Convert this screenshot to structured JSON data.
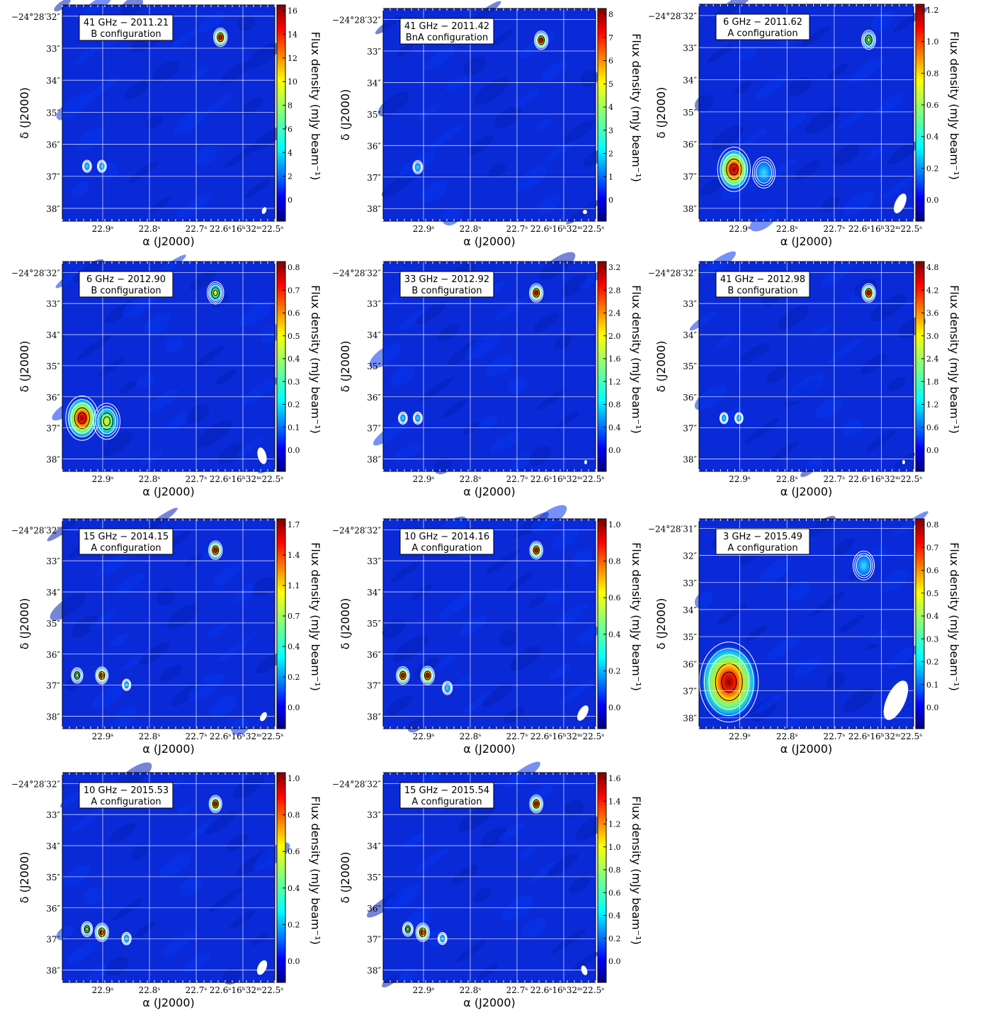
{
  "figure": {
    "xlabel": "α (J2000)",
    "ylabel": "δ (J2000)",
    "cbar_label": "Flux density (mJy beam⁻¹)"
  },
  "chart_data": [
    {
      "type": "heatmap",
      "title_line1": "41 GHz − 2011.21",
      "title_line2": "B configuration",
      "x_ticks": [
        "22.9ˢ",
        "22.8ˢ",
        "22.7ˢ",
        "22.6ˢ16ʰ32ᵐ22.5ˢ"
      ],
      "y_ticks": [
        "−24°28′32″",
        "33″",
        "34″",
        "35″",
        "36″",
        "37″",
        "38″"
      ],
      "cbar_ticks": [
        "16",
        "14",
        "12",
        "10",
        "8",
        "6",
        "4",
        "2",
        "0"
      ],
      "sources": [
        {
          "ra": "22.61",
          "dec": "32.5",
          "flux": 16
        },
        {
          "ra": "22.88",
          "dec": "36.5",
          "flux": 4
        },
        {
          "ra": "22.85",
          "dec": "36.5",
          "flux": 4
        }
      ]
    },
    {
      "type": "heatmap",
      "title_line1": "41 GHz − 2011.42",
      "title_line2": "BnA configuration",
      "x_ticks": [
        "22.9ˢ",
        "22.8ˢ",
        "22.7ˢ",
        "22.6ˢ16ʰ32ᵐ22.5ˢ"
      ],
      "y_ticks": [
        "−24°28′32″",
        "33″",
        "34″",
        "35″",
        "36″",
        "37″",
        "38″"
      ],
      "cbar_ticks": [
        "8",
        "7",
        "6",
        "5",
        "4",
        "3",
        "2",
        "1",
        "0"
      ],
      "sources": [
        {
          "ra": "22.61",
          "dec": "32.5",
          "flux": 8
        },
        {
          "ra": "22.86",
          "dec": "36.5",
          "flux": 3
        }
      ]
    },
    {
      "type": "heatmap",
      "title_line1": "6 GHz − 2011.62",
      "title_line2": "A configuration",
      "x_ticks": [
        "22.9ˢ",
        "22.8ˢ",
        "22.7ˢ",
        "22.6ˢ16ʰ32ᵐ22.5ˢ"
      ],
      "y_ticks": [
        "−24°28′32″",
        "33″",
        "34″",
        "35″",
        "36″",
        "37″",
        "38″"
      ],
      "cbar_ticks": [
        "1.2",
        "1.0",
        "0.8",
        "0.6",
        "0.4",
        "0.2",
        "0.0"
      ],
      "sources": [
        {
          "ra": "22.59",
          "dec": "32.6",
          "flux": 0.5
        },
        {
          "ra": "22.86",
          "dec": "36.6",
          "flux": 1.2
        },
        {
          "ra": "22.80",
          "dec": "36.7",
          "flux": 0.4
        }
      ]
    },
    {
      "type": "heatmap",
      "title_line1": "6 GHz − 2012.90",
      "title_line2": "B configuration",
      "x_ticks": [
        "22.9ˢ",
        "22.8ˢ",
        "22.7ˢ",
        "22.6ˢ16ʰ32ᵐ22.5ˢ"
      ],
      "y_ticks": [
        "−24°28′32″",
        "33″",
        "34″",
        "35″",
        "36″",
        "37″",
        "38″"
      ],
      "cbar_ticks": [
        "0.8",
        "0.7",
        "0.6",
        "0.5",
        "0.4",
        "0.3",
        "0.2",
        "0.1",
        "0.0"
      ],
      "sources": [
        {
          "ra": "22.62",
          "dec": "32.5",
          "flux": 0.6
        },
        {
          "ra": "22.89",
          "dec": "36.5",
          "flux": 0.85
        },
        {
          "ra": "22.84",
          "dec": "36.6",
          "flux": 0.5
        }
      ]
    },
    {
      "type": "heatmap",
      "title_line1": "33 GHz − 2012.92",
      "title_line2": "B configuration",
      "x_ticks": [
        "22.9ˢ",
        "22.8ˢ",
        "22.7ˢ",
        "22.6ˢ16ʰ32ᵐ22.5ˢ"
      ],
      "y_ticks": [
        "−24°28′32″",
        "33″",
        "34″",
        "35″",
        "36″",
        "37″",
        "38″"
      ],
      "cbar_ticks": [
        "3.2",
        "2.8",
        "2.4",
        "2.0",
        "1.6",
        "1.2",
        "0.8",
        "0.4",
        "0.0"
      ],
      "sources": [
        {
          "ra": "22.62",
          "dec": "32.5",
          "flux": 3.2
        },
        {
          "ra": "22.89",
          "dec": "36.5",
          "flux": 0.8
        },
        {
          "ra": "22.86",
          "dec": "36.5",
          "flux": 0.8
        }
      ]
    },
    {
      "type": "heatmap",
      "title_line1": "41 GHz − 2012.98",
      "title_line2": "B configuration",
      "x_ticks": [
        "22.9ˢ",
        "22.8ˢ",
        "22.7ˢ",
        "22.6ˢ16ʰ32ᵐ22.5ˢ"
      ],
      "y_ticks": [
        "−24°28′32″",
        "33″",
        "34″",
        "35″",
        "36″",
        "37″",
        "38″"
      ],
      "cbar_ticks": [
        "4.8",
        "4.2",
        "3.6",
        "3.0",
        "2.4",
        "1.8",
        "1.2",
        "0.6",
        "0.0"
      ],
      "sources": [
        {
          "ra": "22.59",
          "dec": "32.5",
          "flux": 4.8
        },
        {
          "ra": "22.88",
          "dec": "36.5",
          "flux": 0.6
        },
        {
          "ra": "22.85",
          "dec": "36.5",
          "flux": 0.6
        }
      ]
    },
    {
      "type": "heatmap",
      "title_line1": "15 GHz − 2014.15",
      "title_line2": "A configuration",
      "x_ticks": [
        "22.9ˢ",
        "22.8ˢ",
        "22.7ˢ",
        "22.6ˢ16ʰ32ᵐ22.5ˢ"
      ],
      "y_ticks": [
        "−24°28′32″",
        "33″",
        "34″",
        "35″",
        "36″",
        "37″",
        "38″"
      ],
      "cbar_ticks": [
        "1.7",
        "1.4",
        "1.1",
        "0.7",
        "0.4",
        "0.2",
        "0.0"
      ],
      "sources": [
        {
          "ra": "22.62",
          "dec": "32.5",
          "flux": 1.7
        },
        {
          "ra": "22.90",
          "dec": "36.5",
          "flux": 1.1
        },
        {
          "ra": "22.85",
          "dec": "36.5",
          "flux": 1.4
        },
        {
          "ra": "22.80",
          "dec": "36.8",
          "flux": 0.3
        }
      ]
    },
    {
      "type": "heatmap",
      "title_line1": "10 GHz − 2014.16",
      "title_line2": "A configuration",
      "x_ticks": [
        "22.9ˢ",
        "22.8ˢ",
        "22.7ˢ",
        "22.6ˢ16ʰ32ᵐ22.5ˢ"
      ],
      "y_ticks": [
        "−24°28′32″",
        "33″",
        "34″",
        "35″",
        "36″",
        "37″",
        "38″"
      ],
      "cbar_ticks": [
        "1.0",
        "0.8",
        "0.6",
        "0.4",
        "0.2",
        "0.0"
      ],
      "sources": [
        {
          "ra": "22.62",
          "dec": "32.5",
          "flux": 0.9
        },
        {
          "ra": "22.89",
          "dec": "36.5",
          "flux": 0.9
        },
        {
          "ra": "22.84",
          "dec": "36.5",
          "flux": 1.0
        },
        {
          "ra": "22.80",
          "dec": "36.9",
          "flux": 0.4
        }
      ]
    },
    {
      "type": "heatmap",
      "title_line1": "3 GHz − 2015.49",
      "title_line2": "A configuration",
      "x_ticks": [
        "22.9ˢ",
        "22.8ˢ",
        "22.7ˢ",
        "22.6ˢ16ʰ32ᵐ22.5ˢ"
      ],
      "y_ticks": [
        "−24°28′31″",
        "32″",
        "33″",
        "34″",
        "35″",
        "36″",
        "37″",
        "38″"
      ],
      "cbar_ticks": [
        "0.8",
        "0.7",
        "0.6",
        "0.5",
        "0.4",
        "0.3",
        "0.2",
        "0.1",
        "0.0"
      ],
      "sources": [
        {
          "ra": "22.60",
          "dec": "32.6",
          "flux": 0.2
        },
        {
          "ra": "22.87",
          "dec": "36.6",
          "flux": 0.85
        }
      ]
    },
    {
      "type": "heatmap",
      "title_line1": "10 GHz − 2015.53",
      "title_line2": "A configuration",
      "x_ticks": [
        "22.9ˢ",
        "22.8ˢ",
        "22.7ˢ",
        "22.6ˢ16ʰ32ᵐ22.5ˢ"
      ],
      "y_ticks": [
        "−24°28′32″",
        "33″",
        "34″",
        "35″",
        "36″",
        "37″",
        "38″"
      ],
      "cbar_ticks": [
        "1.0",
        "0.8",
        "0.6",
        "0.4",
        "0.2",
        "0.0"
      ],
      "sources": [
        {
          "ra": "22.62",
          "dec": "32.5",
          "flux": 0.85
        },
        {
          "ra": "22.88",
          "dec": "36.5",
          "flux": 0.6
        },
        {
          "ra": "22.85",
          "dec": "36.6",
          "flux": 1.0
        },
        {
          "ra": "22.80",
          "dec": "36.8",
          "flux": 0.3
        }
      ]
    },
    {
      "type": "heatmap",
      "title_line1": "15 GHz − 2015.54",
      "title_line2": "A configuration",
      "x_ticks": [
        "22.9ˢ",
        "22.8ˢ",
        "22.7ˢ",
        "22.6ˢ16ʰ32ᵐ22.5ˢ"
      ],
      "y_ticks": [
        "−24°28′32″",
        "33″",
        "34″",
        "35″",
        "36″",
        "37″",
        "38″"
      ],
      "cbar_ticks": [
        "1.6",
        "1.4",
        "1.2",
        "1.0",
        "0.8",
        "0.6",
        "0.4",
        "0.2",
        "0.0"
      ],
      "sources": [
        {
          "ra": "22.62",
          "dec": "32.5",
          "flux": 1.5
        },
        {
          "ra": "22.88",
          "dec": "36.5",
          "flux": 0.8
        },
        {
          "ra": "22.85",
          "dec": "36.6",
          "flux": 1.6
        },
        {
          "ra": "22.81",
          "dec": "36.8",
          "flux": 0.4
        }
      ]
    }
  ]
}
